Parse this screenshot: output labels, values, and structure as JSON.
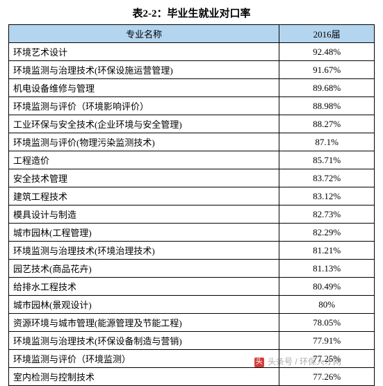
{
  "title": "表2-2：毕业生就业对口率",
  "table": {
    "type": "table",
    "header_bg": "#b4d5ef",
    "border_color": "#000000",
    "columns": [
      {
        "label": "专业名称",
        "align": "center"
      },
      {
        "label": "2016届",
        "align": "center"
      }
    ],
    "rows": [
      {
        "major": "环境艺术设计",
        "value": "92.48%"
      },
      {
        "major": "环境监测与治理技术(环保设施运营管理)",
        "value": "91.67%"
      },
      {
        "major": "机电设备维修与管理",
        "value": "89.68%"
      },
      {
        "major": "环境监测与评价（环境影响评价）",
        "value": "88.98%"
      },
      {
        "major": "工业环保与安全技术(企业环境与安全管理)",
        "value": "88.27%"
      },
      {
        "major": "环境监测与评价(物理污染监测技术)",
        "value": "87.1%"
      },
      {
        "major": "工程造价",
        "value": "85.71%"
      },
      {
        "major": "安全技术管理",
        "value": "83.72%"
      },
      {
        "major": "建筑工程技术",
        "value": "83.12%"
      },
      {
        "major": "模具设计与制造",
        "value": "82.73%"
      },
      {
        "major": "城市园林(工程管理)",
        "value": "82.29%"
      },
      {
        "major": "环境监测与治理技术(环境治理技术)",
        "value": "81.21%"
      },
      {
        "major": "园艺技术(商品花卉)",
        "value": "81.13%"
      },
      {
        "major": "给排水工程技术",
        "value": "80.49%"
      },
      {
        "major": "城市园林(景观设计)",
        "value": "80%"
      },
      {
        "major": "资源环境与城市管理(能源管理及节能工程)",
        "value": "78.05%"
      },
      {
        "major": "环境监测与治理技术(环保设备制造与营销)",
        "value": "77.91%"
      },
      {
        "major": "环境监测与评价（环境监测）",
        "value": "77.25%"
      },
      {
        "major": "室内检测与控制技术",
        "value": "77.26%"
      }
    ]
  },
  "watermark": {
    "logo": "头",
    "text": "头条号 / 环保人才网"
  }
}
